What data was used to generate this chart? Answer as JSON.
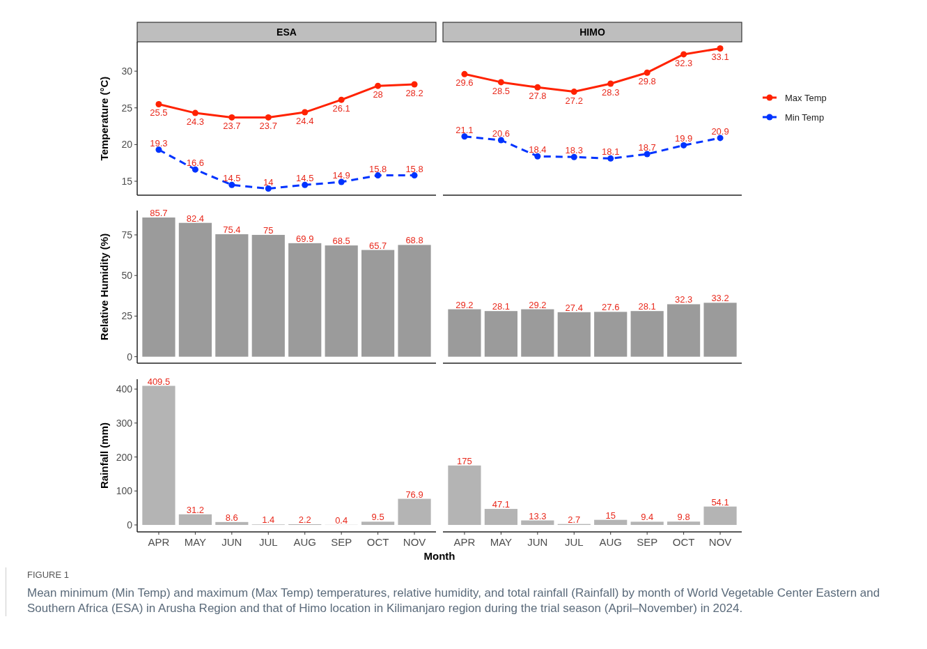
{
  "chart_data": [
    {
      "type": "line",
      "title": "ESA",
      "ylabel": "Temperature (°C)",
      "categories": [
        null,
        null,
        null,
        null,
        null,
        null,
        null,
        null
      ],
      "ylim": [
        13.1,
        34
      ],
      "yticks": [
        15,
        20,
        25,
        30
      ],
      "tick_labels": "y",
      "marker": "circle",
      "data_labels": true,
      "grid": false,
      "series": [
        {
          "color": "#ff2200",
          "line_style": "solid",
          "values": [
            25.5,
            24.3,
            23.7,
            23.7,
            24.4,
            26.1,
            28,
            28.2
          ]
        },
        {
          "color": "#0033ff",
          "line_style": "dashed",
          "values": [
            19.3,
            16.6,
            14.5,
            14,
            14.5,
            14.9,
            15.8,
            15.8
          ]
        }
      ]
    },
    {
      "type": "line",
      "title": "HIMO",
      "categories": [
        null,
        null,
        null,
        null,
        null,
        null,
        null,
        null
      ],
      "tick_labels": false,
      "marker": "circle",
      "data_labels": true,
      "grid": false,
      "legend": "right",
      "series": [
        {
          "name": "Max Temp",
          "color": "#ff2200",
          "line_style": "solid",
          "values": [
            29.6,
            28.5,
            27.8,
            27.2,
            28.3,
            29.8,
            32.3,
            33.1
          ]
        },
        {
          "name": "Min Temp",
          "color": "#0033ff",
          "line_style": "dashed",
          "values": [
            21.1,
            20.6,
            18.4,
            18.3,
            18.1,
            18.7,
            19.9,
            20.9
          ]
        }
      ]
    },
    {
      "type": "bar",
      "ylabel": "Relative Humidity (%)",
      "categories": [
        null,
        null,
        null,
        null,
        null,
        null,
        null,
        null
      ],
      "ylim": [
        -4,
        90
      ],
      "yticks": [
        0,
        25,
        50,
        75
      ],
      "tick_labels": "y",
      "data_labels": true,
      "grid": false,
      "color": "#9b9b9b",
      "values": [
        85.7,
        82.4,
        75.4,
        75,
        69.9,
        68.5,
        65.7,
        68.8
      ]
    },
    {
      "type": "bar",
      "categories": [
        null,
        null,
        null,
        null,
        null,
        null,
        null,
        null
      ],
      "tick_labels": false,
      "data_labels": true,
      "grid": false,
      "color": "#9b9b9b",
      "values": [
        29.2,
        28.1,
        29.2,
        27.4,
        27.6,
        28.1,
        32.3,
        33.2
      ]
    },
    {
      "type": "bar",
      "ylabel": "Rainfall (mm)",
      "xlabel": "Month",
      "categories": [
        "APR",
        "MAY",
        "JUN",
        "JUL",
        "AUG",
        "SEP",
        "OCT",
        "NOV"
      ],
      "ylim": [
        -20.5,
        429
      ],
      "yticks": [
        0,
        100,
        200,
        300,
        400
      ],
      "data_labels": true,
      "grid": false,
      "color": "#b4b4b4",
      "values": [
        409.5,
        31.2,
        8.6,
        1.4,
        2.2,
        0.4,
        9.5,
        76.9
      ]
    },
    {
      "type": "bar",
      "categories": [
        "APR",
        "MAY",
        "JUN",
        "JUL",
        "AUG",
        "SEP",
        "OCT",
        "NOV"
      ],
      "tick_labels": "x",
      "data_labels": true,
      "grid": false,
      "color": "#b4b4b4",
      "values": [
        175,
        47.1,
        13.3,
        2.7,
        15,
        9.4,
        9.8,
        54.1
      ],
      "annotations": [
        "FIGURE 1",
        "Mean minimum (Min Temp) and maximum (Max Temp) temperatures, relative humidity, and total rainfall (Rainfall) by month of World Vegetable Center Eastern and Southern Africa (ESA) in Arusha Region and that of Himo location in Kilimanjaro region during the trial season (April–November) in 2024."
      ]
    }
  ]
}
